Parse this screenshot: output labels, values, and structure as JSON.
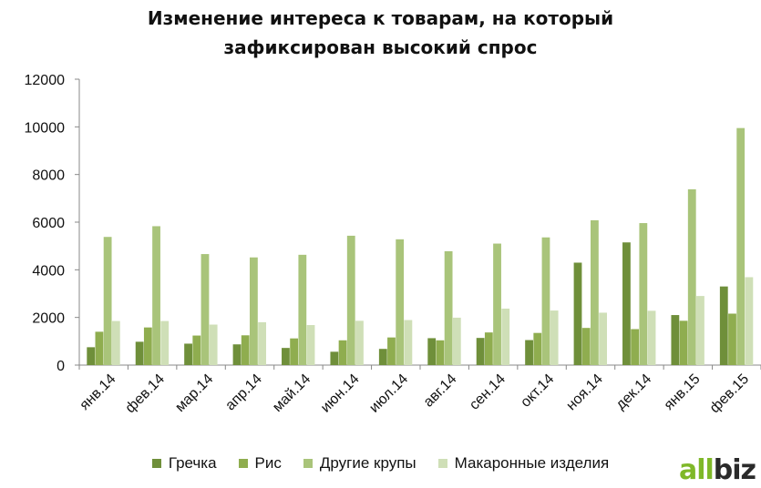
{
  "chart_data": {
    "type": "bar",
    "title_lines": [
      "Изменение интереса к товарам, на который",
      "зафиксирован высокий спрос"
    ],
    "xlabel": "",
    "ylabel": "",
    "ylim": [
      0,
      12000
    ],
    "yticks": [
      0,
      2000,
      4000,
      6000,
      8000,
      10000,
      12000
    ],
    "grid": false,
    "legend_position": "bottom",
    "categories": [
      "янв.14",
      "фев.14",
      "мар.14",
      "апр.14",
      "май.14",
      "июн.14",
      "июл.14",
      "авг.14",
      "сен.14",
      "окт.14",
      "ноя.14",
      "дек.14",
      "янв.15",
      "фев.15"
    ],
    "series": [
      {
        "name": "Гречка",
        "color": "#6f8f3a",
        "values": [
          750,
          980,
          900,
          870,
          720,
          560,
          680,
          1130,
          1140,
          1050,
          4300,
          5150,
          2100,
          3300
        ]
      },
      {
        "name": "Рис",
        "color": "#8fad4f",
        "values": [
          1400,
          1580,
          1240,
          1250,
          1120,
          1040,
          1160,
          1040,
          1370,
          1350,
          1560,
          1510,
          1860,
          2160
        ]
      },
      {
        "name": "Другие крупы",
        "color": "#a9c47a",
        "values": [
          5380,
          5830,
          4660,
          4520,
          4630,
          5430,
          5280,
          4780,
          5100,
          5360,
          6080,
          5960,
          7380,
          9950
        ]
      },
      {
        "name": "Макаронные изделия",
        "color": "#cfdfb7",
        "values": [
          1850,
          1850,
          1700,
          1800,
          1680,
          1860,
          1890,
          1990,
          2370,
          2290,
          2200,
          2280,
          2900,
          3690
        ]
      }
    ]
  },
  "logo": {
    "part1": "all",
    "part2": "biz"
  }
}
